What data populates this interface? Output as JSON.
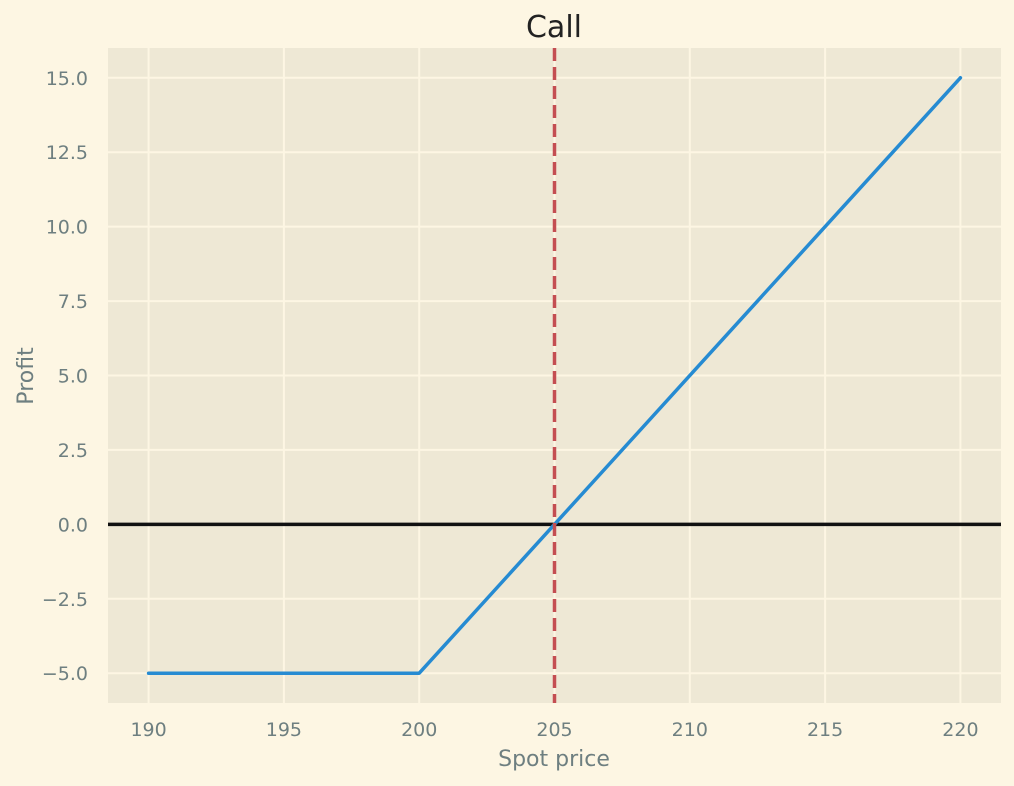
{
  "chart_data": {
    "type": "line",
    "title": "Call",
    "xlabel": "Spot price",
    "ylabel": "Profit",
    "xlim": [
      188.5,
      221.5
    ],
    "ylim": [
      -6.0,
      16.0
    ],
    "x_ticks": [
      190,
      195,
      200,
      205,
      210,
      215,
      220
    ],
    "x_tick_labels": [
      "190",
      "195",
      "200",
      "205",
      "210",
      "215",
      "220"
    ],
    "y_ticks": [
      -5.0,
      -2.5,
      0.0,
      2.5,
      5.0,
      7.5,
      10.0,
      12.5,
      15.0
    ],
    "y_tick_labels": [
      "−5.0",
      "−2.5",
      "0.0",
      "2.5",
      "5.0",
      "7.5",
      "10.0",
      "12.5",
      "15.0"
    ],
    "grid": true,
    "series": [
      {
        "x": [
          190,
          200,
          220
        ],
        "y": [
          -5.0,
          -5.0,
          15.0
        ],
        "color": "#268bd2"
      }
    ],
    "reference_lines": {
      "horizontal": {
        "y": 0.0,
        "color": "#111111",
        "style": "solid"
      },
      "vertical": {
        "x": 205,
        "color": "#c44e52",
        "style": "dashed"
      }
    }
  },
  "colors": {
    "figure_background": "#fdf6e3",
    "plot_background": "#eee8d5",
    "grid": "#fdf6e3",
    "tick_text": "#6e7f80",
    "title_text": "#222222"
  }
}
